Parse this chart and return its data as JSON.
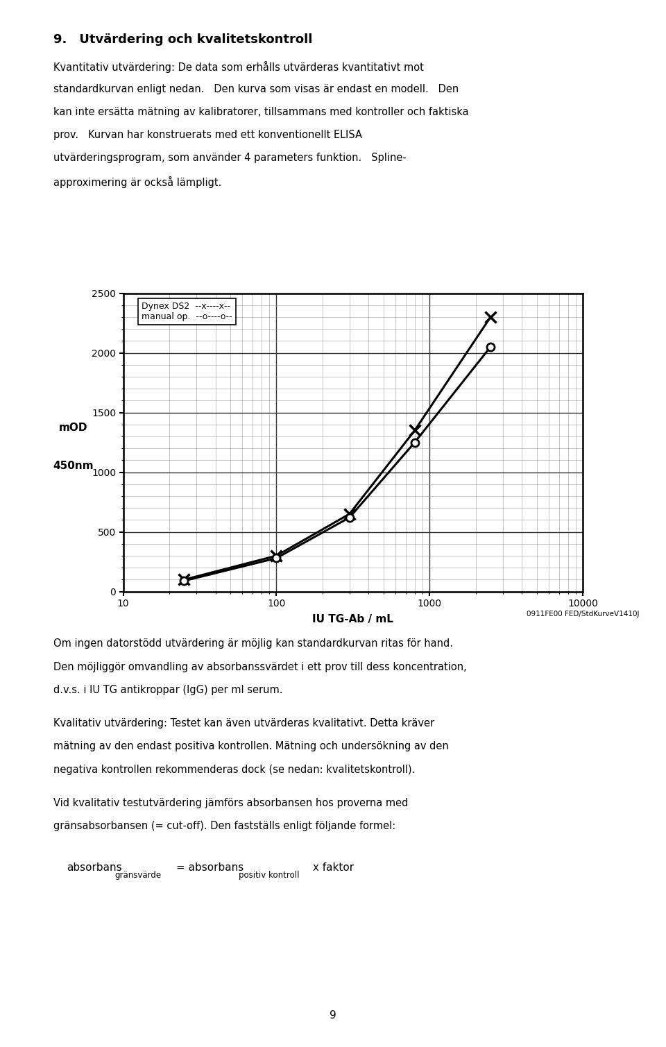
{
  "page_title": "9. Utvärdering och kvalitetskontroll",
  "para1": "Kvantitativ utvärdering: De data som erhålls utvärderas kvantitativt mot\nstandardkurvan enligt nedan. Den kurva som visas är endast en modell. Den\nkan inte ersätta mätning av kalibratorer, tillsammans med kontroller och faktiska\nprov. Kurvan har konstruerats med ett konventionellt ELISA\nutvärderingsprogram, som använder 4 parameters funktion. Spline-\napproximering är också lämpligt.",
  "xlabel": "IU TG-Ab / mL",
  "ylabel_line1": "mOD",
  "ylabel_line2": "450nm",
  "xlim": [
    10,
    10000
  ],
  "ylim": [
    0,
    2500
  ],
  "yticks": [
    0,
    500,
    1000,
    1500,
    2000,
    2500
  ],
  "xticks": [
    10,
    100,
    1000,
    10000
  ],
  "dynex_x": [
    25,
    100,
    300,
    800,
    2500
  ],
  "dynex_y": [
    100,
    300,
    650,
    1350,
    2300
  ],
  "manual_x": [
    25,
    100,
    300,
    800,
    2500
  ],
  "manual_y": [
    90,
    280,
    620,
    1250,
    2050
  ],
  "legend_dynex": "Dynex DS2  --x----x--",
  "legend_manual": "manual op.  --o----o--",
  "footnote": "0911FE00 FED/StdKurveV1410J",
  "para2": "Om ingen datorstödd utvärdering är möjlig kan standardkurvan ritas för hand.\nDen möjliggör omvandling av absorbanssvärdet i ett prov till dess koncentration,\nd.v.s. i IU TG antikroppar (IgG) per ml serum.",
  "para3": "Kvalitativ utvärdering: Testet kan även utvärderas kvalitativt. Detta kräver\nmätning av den endast positiva kontrollen. Mätning och undersökning av den\nnegativa kontrollen rekommenderas dock (se nedan: kvalitetskontroll).",
  "para4": "Vid kvalitativ testutvärdering jämförs absorbansen hos proverna med\ngränsabsorbansen (= cut-off). Den fastställs enligt följande formel:",
  "formula_left": "absorbans",
  "formula_left_sub": "gränsvärde",
  "formula_eq": "= absorbans",
  "formula_right_sub": "positiv kontroll",
  "formula_right_end": " x faktor",
  "page_number": "9",
  "background_color": "#ffffff"
}
